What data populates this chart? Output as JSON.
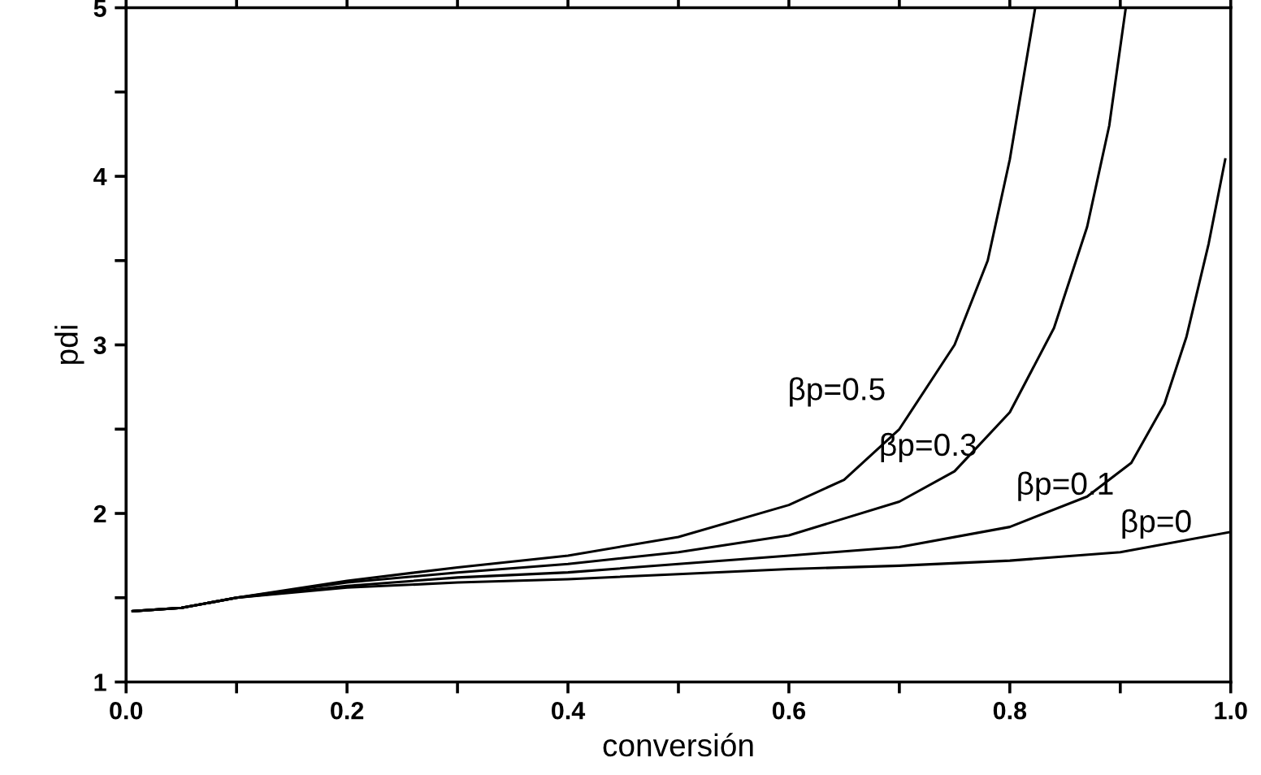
{
  "chart_data": {
    "type": "line",
    "xlabel": "conversión",
    "ylabel": "pdi",
    "xlim": [
      0,
      1
    ],
    "ylim": [
      1,
      5
    ],
    "xticks": [
      {
        "value": 0,
        "label": "0.0"
      },
      {
        "value": 0.1,
        "label": null
      },
      {
        "value": 0.2,
        "label": "0.2"
      },
      {
        "value": 0.3,
        "label": null
      },
      {
        "value": 0.4,
        "label": "0.4"
      },
      {
        "value": 0.5,
        "label": null
      },
      {
        "value": 0.6,
        "label": "0.6"
      },
      {
        "value": 0.7,
        "label": null
      },
      {
        "value": 0.8,
        "label": "0.8"
      },
      {
        "value": 0.9,
        "label": null
      },
      {
        "value": 1,
        "label": "1.0"
      }
    ],
    "yticks": [
      1,
      {
        "value": 1.5,
        "label": null
      },
      2,
      {
        "value": 2.5,
        "label": null
      },
      3,
      {
        "value": 3.5,
        "label": null
      },
      4,
      {
        "value": 4.5,
        "label": null
      },
      5
    ],
    "grid": false,
    "legend": false,
    "marker": "none",
    "line_style": "solid",
    "series": [
      {
        "name": "βp=0.5",
        "color": "#000000",
        "x": [
          0.006,
          0.05,
          0.1,
          0.2,
          0.3,
          0.4,
          0.5,
          0.6,
          0.65,
          0.7,
          0.75,
          0.78,
          0.8,
          0.823
        ],
        "values": [
          1.42,
          1.44,
          1.5,
          1.6,
          1.68,
          1.75,
          1.86,
          2.05,
          2.2,
          2.5,
          3.0,
          3.5,
          4.1,
          5.0
        ]
      },
      {
        "name": "βp=0.3",
        "color": "#000000",
        "x": [
          0.006,
          0.05,
          0.1,
          0.2,
          0.3,
          0.4,
          0.5,
          0.6,
          0.7,
          0.75,
          0.8,
          0.84,
          0.87,
          0.89,
          0.905
        ],
        "values": [
          1.42,
          1.44,
          1.5,
          1.59,
          1.65,
          1.7,
          1.77,
          1.87,
          2.07,
          2.25,
          2.6,
          3.1,
          3.7,
          4.3,
          5.0
        ]
      },
      {
        "name": "βp=0.1",
        "color": "#000000",
        "x": [
          0.006,
          0.05,
          0.1,
          0.2,
          0.3,
          0.4,
          0.5,
          0.6,
          0.7,
          0.8,
          0.87,
          0.91,
          0.94,
          0.96,
          0.98,
          0.995
        ],
        "values": [
          1.42,
          1.44,
          1.5,
          1.57,
          1.62,
          1.65,
          1.7,
          1.75,
          1.8,
          1.92,
          2.1,
          2.3,
          2.65,
          3.05,
          3.6,
          4.1
        ]
      },
      {
        "name": "βp=0",
        "color": "#000000",
        "x": [
          0.006,
          0.05,
          0.1,
          0.2,
          0.3,
          0.4,
          0.5,
          0.6,
          0.7,
          0.8,
          0.9,
          1.0
        ],
        "values": [
          1.42,
          1.44,
          1.5,
          1.56,
          1.59,
          1.61,
          1.64,
          1.67,
          1.69,
          1.72,
          1.77,
          1.89
        ]
      }
    ]
  }
}
